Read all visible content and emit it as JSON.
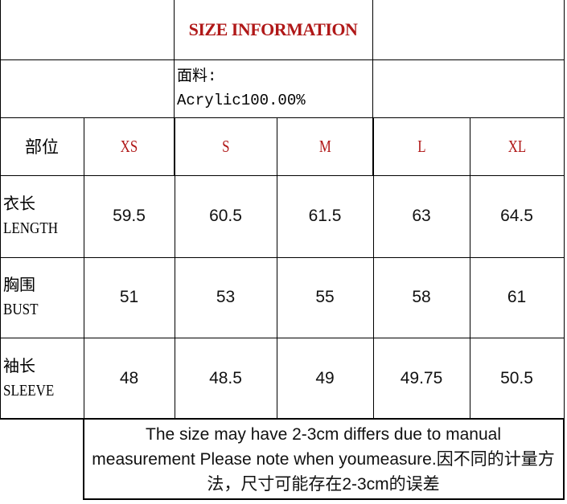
{
  "title": "SIZE INFORMATION",
  "fabric": {
    "label": "面料:",
    "value": "Acrylic100.00%"
  },
  "header": {
    "part_label": "部位",
    "sizes": [
      "XS",
      "S",
      "M",
      "L",
      "XL"
    ]
  },
  "rows": [
    {
      "zh": "衣长",
      "en": "LENGTH",
      "values": [
        "59.5",
        "60.5",
        "61.5",
        "63",
        "64.5"
      ]
    },
    {
      "zh": "胸围",
      "en": "BUST",
      "values": [
        "51",
        "53",
        "55",
        "58",
        "61"
      ]
    },
    {
      "zh": "袖长",
      "en": "SLEEVE",
      "values": [
        "48",
        "48.5",
        "49",
        "49.75",
        "50.5"
      ]
    }
  ],
  "note": "The size may have 2-3cm differs due to manual measurement Please note when youmeasure.因不同的计量方法，尺寸可能存在2-3cm的误差",
  "colors": {
    "size_label": "#b01818",
    "border": "#000000"
  }
}
